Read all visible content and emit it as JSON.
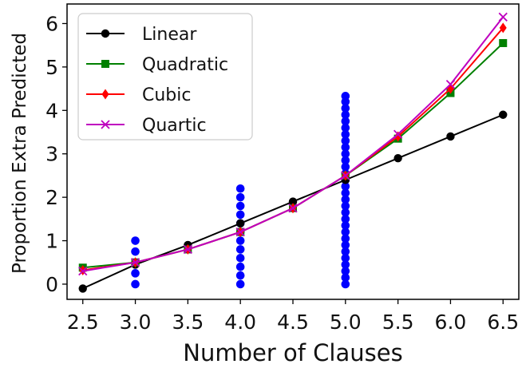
{
  "chart_data": {
    "type": "scatter",
    "title": "",
    "xlabel": "Number of Clauses",
    "ylabel": "Proportion Extra Predicted",
    "xlim": [
      2.35,
      6.65
    ],
    "ylim": [
      -0.35,
      6.45
    ],
    "xticks": [
      "2.5",
      "3.0",
      "3.5",
      "4.0",
      "4.5",
      "5.0",
      "5.5",
      "6.0",
      "6.5"
    ],
    "yticks": [
      "0",
      "1",
      "2",
      "3",
      "4",
      "5",
      "6"
    ],
    "grid": false,
    "legend_position": "top-left",
    "x": [
      2.5,
      3.0,
      3.5,
      4.0,
      4.5,
      5.0,
      5.5,
      6.0,
      6.5
    ],
    "series": [
      {
        "name": "Linear",
        "color": "#000000",
        "marker": "circle",
        "values": [
          -0.1,
          0.45,
          0.9,
          1.4,
          1.9,
          2.4,
          2.9,
          3.4,
          3.9
        ]
      },
      {
        "name": "Quadratic",
        "color": "#008000",
        "marker": "square",
        "values": [
          0.38,
          0.5,
          0.8,
          1.2,
          1.75,
          2.5,
          3.35,
          4.4,
          5.55
        ]
      },
      {
        "name": "Cubic",
        "color": "#ff0000",
        "marker": "diamond",
        "values": [
          0.32,
          0.5,
          0.8,
          1.2,
          1.75,
          2.5,
          3.4,
          4.5,
          5.9
        ]
      },
      {
        "name": "Quartic",
        "color": "#bf00bf",
        "marker": "x",
        "values": [
          0.3,
          0.5,
          0.8,
          1.2,
          1.75,
          2.5,
          3.45,
          4.6,
          6.15
        ]
      }
    ],
    "observations": {
      "color": "#0000ff",
      "points": [
        {
          "x": 3.0,
          "values": [
            0.0,
            0.25,
            0.5,
            0.75,
            1.0
          ]
        },
        {
          "x": 4.0,
          "values": [
            0.0,
            0.2,
            0.4,
            0.6,
            0.8,
            1.0,
            1.2,
            1.4,
            1.6,
            1.8,
            2.0,
            2.2
          ]
        },
        {
          "x": 5.0,
          "values": [
            0.0,
            0.15,
            0.3,
            0.45,
            0.6,
            0.75,
            0.9,
            1.05,
            1.2,
            1.35,
            1.5,
            1.65,
            1.8,
            1.95,
            2.1,
            2.25,
            2.4,
            2.55,
            2.7,
            2.85,
            3.0,
            3.15,
            3.3,
            3.45,
            3.6,
            3.75,
            3.9,
            4.05,
            4.2,
            4.33
          ]
        }
      ]
    }
  }
}
